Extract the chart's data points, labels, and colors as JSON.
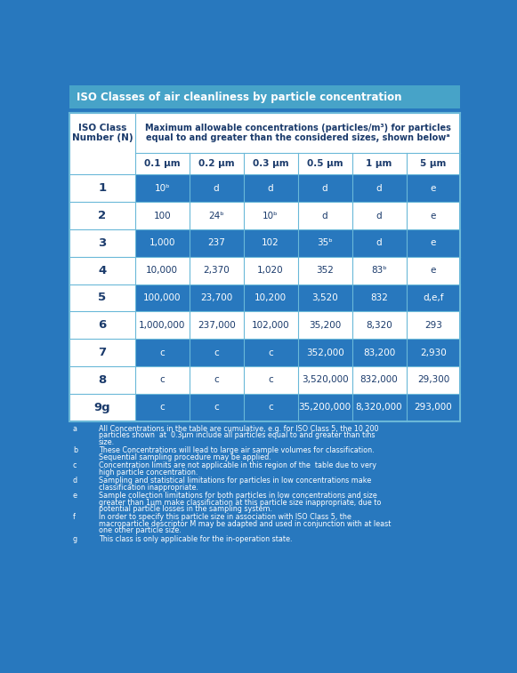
{
  "title": "ISO Classes of air cleanliness by particle concentration",
  "header_col": "ISO Class\nNumber (N)",
  "header_main": "Maximum allowable concentrations (particles/m³) for particles\nequal to and greater than the considered sizes, shown belowᵃ",
  "col_headers": [
    "0.1 μm",
    "0.2 μm",
    "0.3 μm",
    "0.5 μm",
    "1 μm",
    "5 μm"
  ],
  "rows": [
    [
      "1",
      "10ᵇ",
      "d",
      "d",
      "d",
      "d",
      "e"
    ],
    [
      "2",
      "100",
      "24ᵇ",
      "10ᵇ",
      "d",
      "d",
      "e"
    ],
    [
      "3",
      "1,000",
      "237",
      "102",
      "35ᵇ",
      "d",
      "e"
    ],
    [
      "4",
      "10,000",
      "2,370",
      "1,020",
      "352",
      "83ᵇ",
      "e"
    ],
    [
      "5",
      "100,000",
      "23,700",
      "10,200",
      "3,520",
      "832",
      "d,e,f"
    ],
    [
      "6",
      "1,000,000",
      "237,000",
      "102,000",
      "35,200",
      "8,320",
      "293"
    ],
    [
      "7",
      "c",
      "c",
      "c",
      "352,000",
      "83,200",
      "2,930"
    ],
    [
      "8",
      "c",
      "c",
      "c",
      "3,520,000",
      "832,000",
      "29,300"
    ],
    [
      "9g",
      "c",
      "c",
      "c",
      "35,200,000",
      "8,320,000",
      "293,000"
    ]
  ],
  "footnotes": [
    [
      "a",
      "All Concentrations in the table are cumulative, e.g. for ISO Class 5, the 10 200 particles shown  at  0.3μm include all particles equal to and greater than tihs size."
    ],
    [
      "b",
      "These Concentrations will lead to large air sample volumes for classification. Sequential sampling procedure may be applied."
    ],
    [
      "c",
      "Concentration limits are not applicable in this region of the  table due to very high particle concentration."
    ],
    [
      "d",
      "Sampling and statistical limitations for particles in low concentrations make classification inappropriate."
    ],
    [
      "e",
      "Sample collection limitations for both particles in low concentrations and size greater than 1μm make classification at this particle size inappropriate, due to potential particle losses in the sampling system."
    ],
    [
      "f",
      "In order to specify this particle size in association with ISO Class 5, the macroparticle descriptor M may be adapted and used in conjunction with at least one other particle size."
    ],
    [
      "g",
      "This class is only applicable for the in-operation state."
    ]
  ],
  "bg_color": "#2878be",
  "title_bg": "#47a3c8",
  "cell_bg_dark": "#2878be",
  "cell_bg_light": "#ffffff",
  "text_white": "#ffffff",
  "text_dark": "#1a3a6b",
  "border_color": "#6ab8d8",
  "title_color": "#ffffff",
  "header_text_color": "#1a3a6b"
}
